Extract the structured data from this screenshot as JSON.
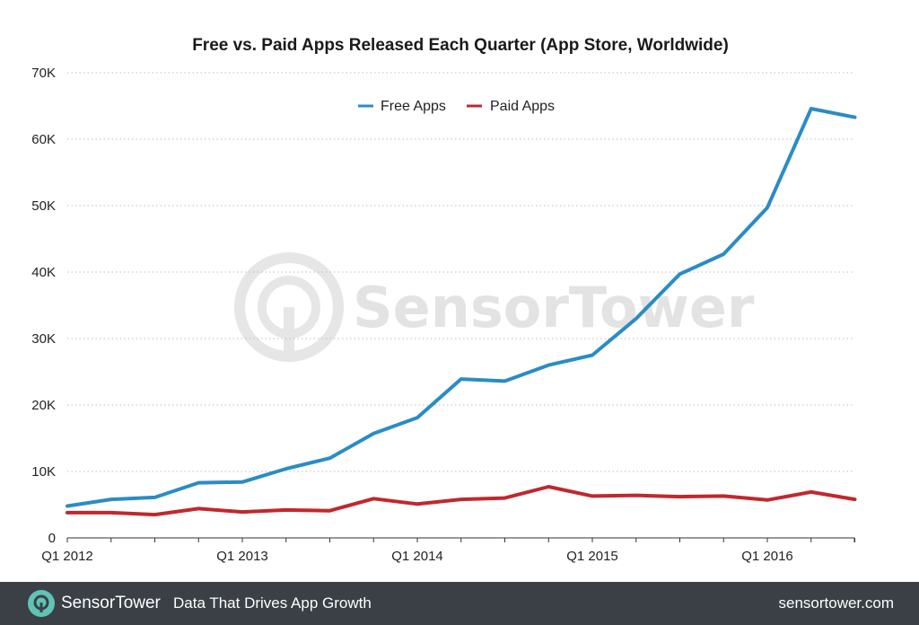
{
  "chart_data": {
    "type": "line",
    "title": "Free vs. Paid Apps Released Each Quarter (App Store, Worldwide)",
    "xlabel": "",
    "ylabel": "",
    "x_tick_labels": [
      "Q1 2012",
      "Q1 2013",
      "Q1 2014",
      "Q1 2015",
      "Q1 2016"
    ],
    "x_tick_indices": [
      0,
      4,
      8,
      12,
      16
    ],
    "y_tick_labels": [
      "0",
      "10K",
      "20K",
      "30K",
      "40K",
      "50K",
      "60K",
      "70K"
    ],
    "ylim": [
      0,
      70000
    ],
    "quarters": [
      "Q1 2012",
      "Q2 2012",
      "Q3 2012",
      "Q4 2012",
      "Q1 2013",
      "Q2 2013",
      "Q3 2013",
      "Q4 2013",
      "Q1 2014",
      "Q2 2014",
      "Q3 2014",
      "Q4 2014",
      "Q1 2015",
      "Q2 2015",
      "Q3 2015",
      "Q4 2015",
      "Q1 2016",
      "Q2 2016",
      "Q3 2016"
    ],
    "grid": true,
    "legend_position": "top-center",
    "series": [
      {
        "name": "Free Apps",
        "color": "#2b8cc4",
        "values": [
          4800,
          5800,
          6100,
          8300,
          8400,
          10400,
          12000,
          15700,
          18100,
          23900,
          23600,
          26000,
          27500,
          33000,
          39700,
          42700,
          49700,
          64600,
          63300
        ]
      },
      {
        "name": "Paid Apps",
        "color": "#c0282d",
        "values": [
          3800,
          3800,
          3500,
          4400,
          3900,
          4200,
          4100,
          5900,
          5100,
          5800,
          6000,
          7700,
          6300,
          6400,
          6200,
          6300,
          5700,
          6900,
          5800
        ]
      }
    ]
  },
  "watermark": {
    "text": "SensorTower"
  },
  "footer": {
    "brand": "SensorTower",
    "tagline": "Data That Drives App Growth",
    "url": "sensortower.com"
  }
}
